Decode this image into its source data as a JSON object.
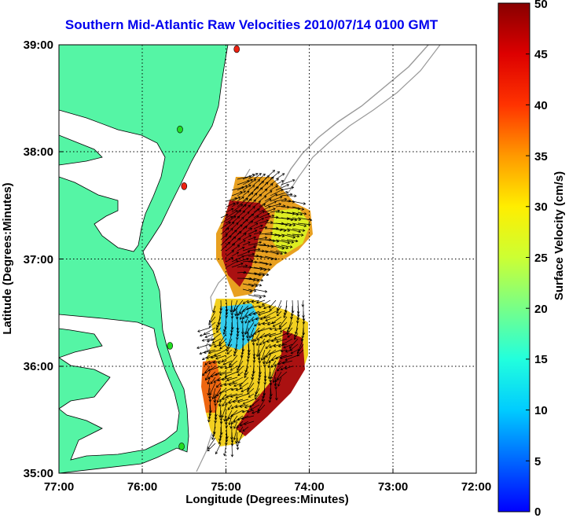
{
  "title": "Southern Mid-Atlantic Raw Velocities 2010/07/14 0100 GMT",
  "x_axis": {
    "label": "Longitude (Degrees:Minutes)",
    "ticks": [
      "77:00",
      "76:00",
      "75:00",
      "74:00",
      "73:00",
      "72:00"
    ],
    "values": [
      -77,
      -76,
      -75,
      -74,
      -73,
      -72
    ]
  },
  "y_axis": {
    "label": "Latitude (Degrees:Minutes)",
    "ticks": [
      "39:00",
      "38:00",
      "37:00",
      "36:00",
      "35:00"
    ],
    "values": [
      39,
      38,
      37,
      36,
      35
    ]
  },
  "colorbar": {
    "label": "Surface Velocity (cm/s)",
    "ticks": [
      "50",
      "45",
      "40",
      "35",
      "30",
      "25",
      "20",
      "15",
      "10",
      "5",
      "0"
    ],
    "min": 0,
    "max": 50,
    "colormap": "jet"
  },
  "colors": {
    "title": "#0000ee",
    "land": "#55f5a5",
    "coastline": "#000000",
    "bathymetry": "#999999",
    "station_active": "#22dd22",
    "station_inactive": "#ee2211"
  },
  "map": {
    "extent": {
      "lon": [
        -77,
        -72
      ],
      "lat": [
        35,
        39
      ]
    },
    "grid": "dotted",
    "stations": [
      {
        "status": "inactive",
        "lon": -74.87,
        "lat": 38.96
      },
      {
        "status": "active",
        "lon": -75.55,
        "lat": 38.21
      },
      {
        "status": "inactive",
        "lon": -75.5,
        "lat": 37.68
      },
      {
        "status": "active",
        "lon": -75.67,
        "lat": 36.19
      },
      {
        "status": "active",
        "lon": -75.53,
        "lat": 35.25
      }
    ]
  }
}
